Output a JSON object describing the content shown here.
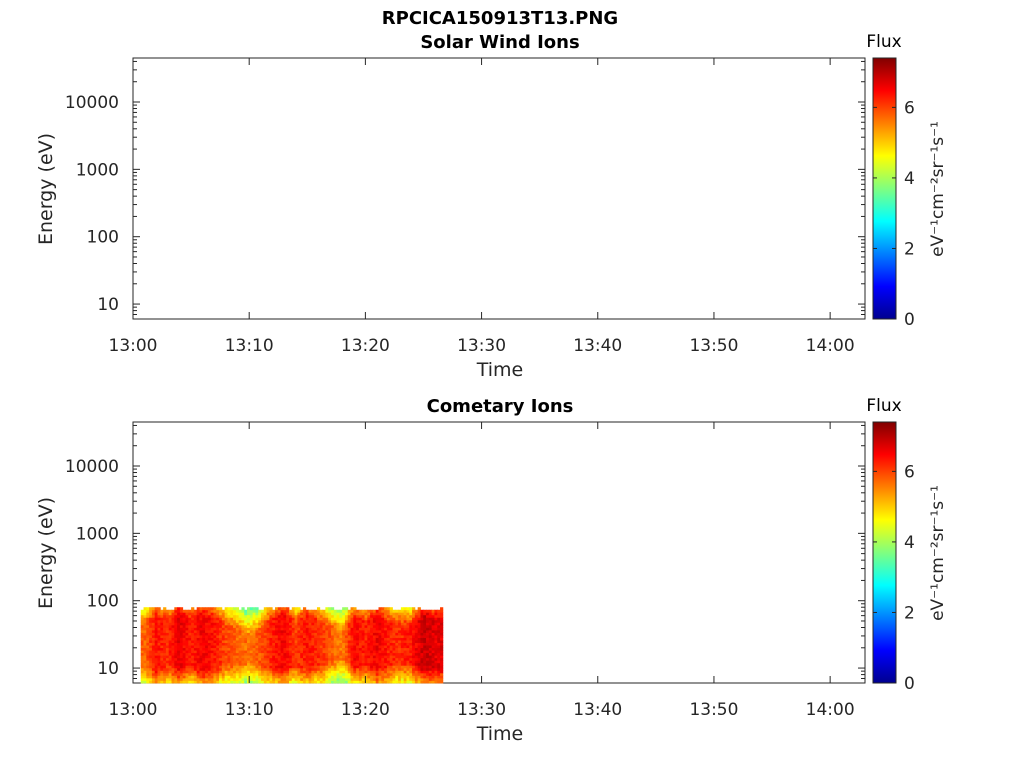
{
  "figure": {
    "title": "RPCICA150913T13.PNG"
  },
  "colorbar": {
    "label": "Flux",
    "unit_label": "eV⁻¹cm⁻²sr⁻¹s⁻¹",
    "range": [
      0,
      7.4
    ],
    "ticks": [
      "0",
      "2",
      "4",
      "6"
    ],
    "colormap": "jet"
  },
  "chart_data": [
    {
      "type": "heatmap",
      "title": "Solar Wind Ions",
      "xlabel": "Time",
      "ylabel": "Energy (eV)",
      "x_ticks": [
        "13:00",
        "13:10",
        "13:20",
        "13:30",
        "13:40",
        "13:50",
        "14:00"
      ],
      "y_ticks": [
        "10",
        "100",
        "1000",
        "10000"
      ],
      "xlim": [
        "13:00",
        "14:03"
      ],
      "ylim": [
        6,
        45000
      ],
      "y_scale": "log",
      "data": []
    },
    {
      "type": "heatmap",
      "title": "Cometary Ions",
      "xlabel": "Time",
      "ylabel": "Energy (eV)",
      "x_ticks": [
        "13:00",
        "13:10",
        "13:20",
        "13:30",
        "13:40",
        "13:50",
        "14:00"
      ],
      "y_ticks": [
        "10",
        "100",
        "1000",
        "10000"
      ],
      "xlim": [
        "13:00",
        "14:03"
      ],
      "ylim": [
        6,
        45000
      ],
      "y_scale": "log",
      "data_time_range": [
        "13:00:40",
        "13:26:40"
      ],
      "data_energy_range": [
        6,
        80
      ],
      "profile": [
        {
          "t": "13:01",
          "lo": 11,
          "hi": 45,
          "peak": 6.0
        },
        {
          "t": "13:02",
          "lo": 9,
          "hi": 60,
          "peak": 6.6
        },
        {
          "t": "13:03",
          "lo": 11,
          "hi": 50,
          "peak": 6.4
        },
        {
          "t": "13:04",
          "lo": 10,
          "hi": 65,
          "peak": 6.9
        },
        {
          "t": "13:05",
          "lo": 11,
          "hi": 55,
          "peak": 6.5
        },
        {
          "t": "13:06",
          "lo": 9,
          "hi": 65,
          "peak": 6.8
        },
        {
          "t": "13:07",
          "lo": 10,
          "hi": 55,
          "peak": 6.6
        },
        {
          "t": "13:08",
          "lo": 11,
          "hi": 45,
          "peak": 6.2
        },
        {
          "t": "13:09",
          "lo": 11,
          "hi": 40,
          "peak": 6.0
        },
        {
          "t": "13:10",
          "lo": 12,
          "hi": 30,
          "peak": 5.9
        },
        {
          "t": "13:11",
          "lo": 11,
          "hi": 38,
          "peak": 6.1
        },
        {
          "t": "13:12",
          "lo": 10,
          "hi": 55,
          "peak": 6.5
        },
        {
          "t": "13:13",
          "lo": 10,
          "hi": 65,
          "peak": 6.8
        },
        {
          "t": "13:14",
          "lo": 11,
          "hi": 48,
          "peak": 6.3
        },
        {
          "t": "13:15",
          "lo": 10,
          "hi": 60,
          "peak": 6.6
        },
        {
          "t": "13:16",
          "lo": 11,
          "hi": 50,
          "peak": 6.4
        },
        {
          "t": "13:17",
          "lo": 12,
          "hi": 42,
          "peak": 6.1
        },
        {
          "t": "13:18",
          "lo": 14,
          "hi": 35,
          "peak": 5.8
        },
        {
          "t": "13:19",
          "lo": 11,
          "hi": 55,
          "peak": 6.7
        },
        {
          "t": "13:20",
          "lo": 11,
          "hi": 48,
          "peak": 6.5
        },
        {
          "t": "13:21",
          "lo": 10,
          "hi": 60,
          "peak": 6.8
        },
        {
          "t": "13:22",
          "lo": 11,
          "hi": 48,
          "peak": 6.5
        },
        {
          "t": "13:23",
          "lo": 12,
          "hi": 45,
          "peak": 6.4
        },
        {
          "t": "13:24",
          "lo": 12,
          "hi": 42,
          "peak": 6.6
        },
        {
          "t": "13:25",
          "lo": 10,
          "hi": 60,
          "peak": 7.1
        },
        {
          "t": "13:26",
          "lo": 10,
          "hi": 55,
          "peak": 6.9
        }
      ]
    }
  ]
}
